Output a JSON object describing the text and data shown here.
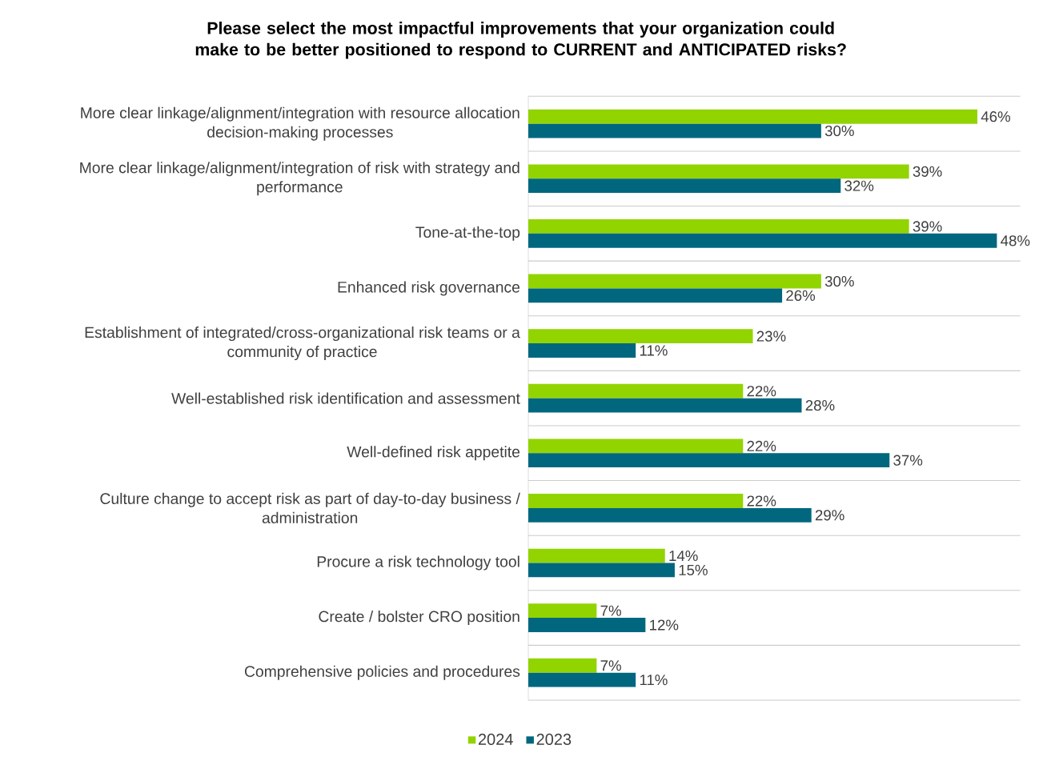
{
  "chart_data": {
    "type": "bar",
    "orientation": "horizontal",
    "title": "Please select the most impactful improvements that your organization could make to be better positioned to respond to CURRENT and ANTICIPATED risks?",
    "categories": [
      "More clear linkage/alignment/integration with resource allocation decision-making processes",
      "More clear linkage/alignment/integration of risk with strategy and performance",
      "Tone-at-the-top",
      "Enhanced risk governance",
      "Establishment of integrated/cross-organizational risk teams or a community of practice",
      "Well-established risk identification and assessment",
      "Well-defined risk appetite",
      "Culture change to accept risk as part of day-to-day business / administration",
      "Procure a risk technology tool",
      "Create / bolster CRO position",
      "Comprehensive policies and procedures"
    ],
    "series": [
      {
        "name": "2024",
        "color": "#92d400",
        "values": [
          46,
          39,
          39,
          30,
          23,
          22,
          22,
          22,
          14,
          7,
          7
        ],
        "value_labels": [
          "46%",
          "39%",
          "39%",
          "30%",
          "23%",
          "22%",
          "22%",
          "22%",
          "14%",
          "7%",
          "7%"
        ]
      },
      {
        "name": "2023",
        "color": "#00677f",
        "values": [
          30,
          32,
          48,
          26,
          11,
          28,
          37,
          29,
          15,
          12,
          11
        ],
        "value_labels": [
          "30%",
          "32%",
          "48%",
          "26%",
          "11%",
          "28%",
          "37%",
          "29%",
          "15%",
          "12%",
          "11%"
        ]
      }
    ],
    "grid": "y",
    "legend": "bottom"
  }
}
